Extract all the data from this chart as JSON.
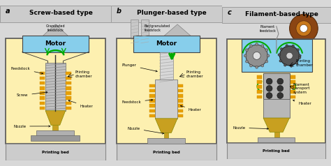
{
  "title_a": "Screw-based type",
  "title_b": "Plunger-based type",
  "title_c": "Filament-based type",
  "label_a": "a",
  "label_b": "b",
  "label_c": "c",
  "bg_color": "#d8d8d8",
  "panel_bg": "#fdf0b0",
  "panel_border": "#555555",
  "motor_color": "#87ceeb",
  "motor_border": "#444444",
  "screw_color": "#c8c8c8",
  "nozzle_color": "#c8a020",
  "heater_color": "#e8a000",
  "bottom_bar_color": "#aaaaaa",
  "green_color": "#00aa00",
  "spool_outer": "#8B4513",
  "spool_inner": "#c8781a",
  "font_size_title": 6.5,
  "font_size_label": 7,
  "font_size_anno": 4.0
}
